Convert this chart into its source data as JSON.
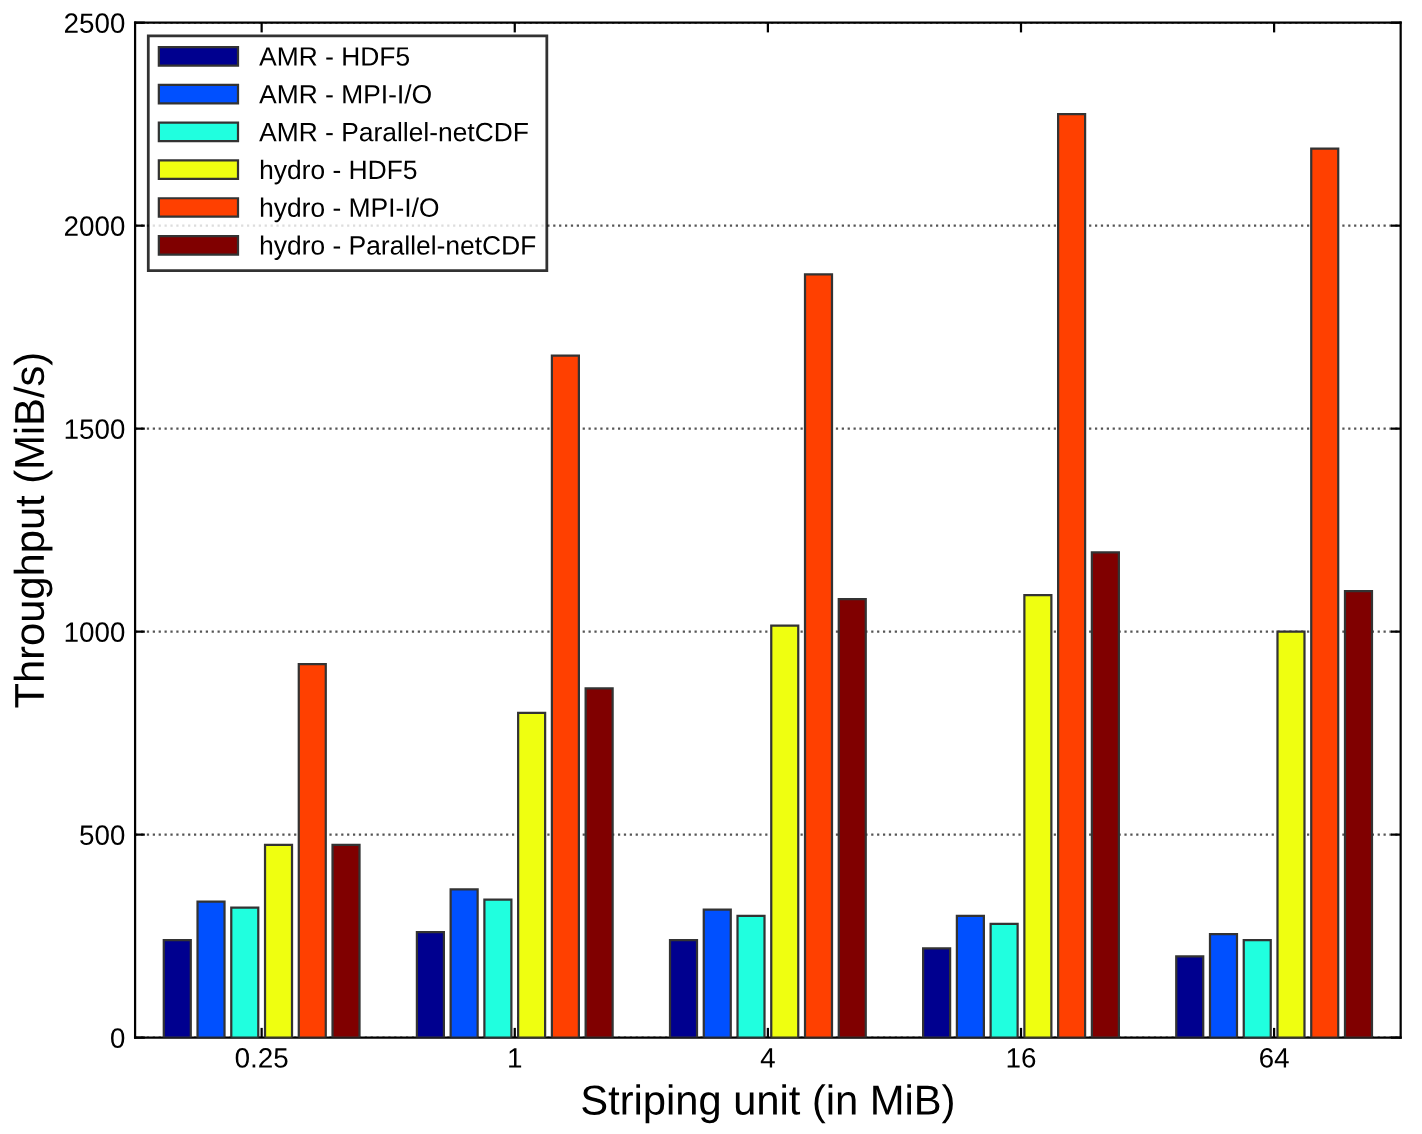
{
  "chart_data": {
    "type": "bar",
    "xlabel": "Striping unit (in MiB)",
    "ylabel": "Throughput (MiB/s)",
    "categories": [
      "0.25",
      "1",
      "4",
      "16",
      "64"
    ],
    "series": [
      {
        "name": "AMR - HDF5",
        "color": "#00008f",
        "values": [
          240,
          260,
          240,
          220,
          200
        ]
      },
      {
        "name": "AMR - MPI-I/O",
        "color": "#0050ff",
        "values": [
          335,
          365,
          315,
          300,
          255
        ]
      },
      {
        "name": "AMR - Parallel-netCDF",
        "color": "#20ffdf",
        "values": [
          320,
          340,
          300,
          280,
          240
        ]
      },
      {
        "name": "hydro - HDF5",
        "color": "#efff10",
        "values": [
          475,
          800,
          1015,
          1090,
          1000
        ]
      },
      {
        "name": "hydro - MPI-I/O",
        "color": "#ff4000",
        "values": [
          920,
          1680,
          1880,
          2275,
          2190
        ]
      },
      {
        "name": "hydro - Parallel-netCDF",
        "color": "#800000",
        "values": [
          475,
          860,
          1080,
          1195,
          1100
        ]
      }
    ],
    "ylim": [
      0,
      2500
    ],
    "yticks": [
      0,
      500,
      1000,
      1500,
      2000,
      2500
    ],
    "grid": "y",
    "legend": "top left"
  }
}
